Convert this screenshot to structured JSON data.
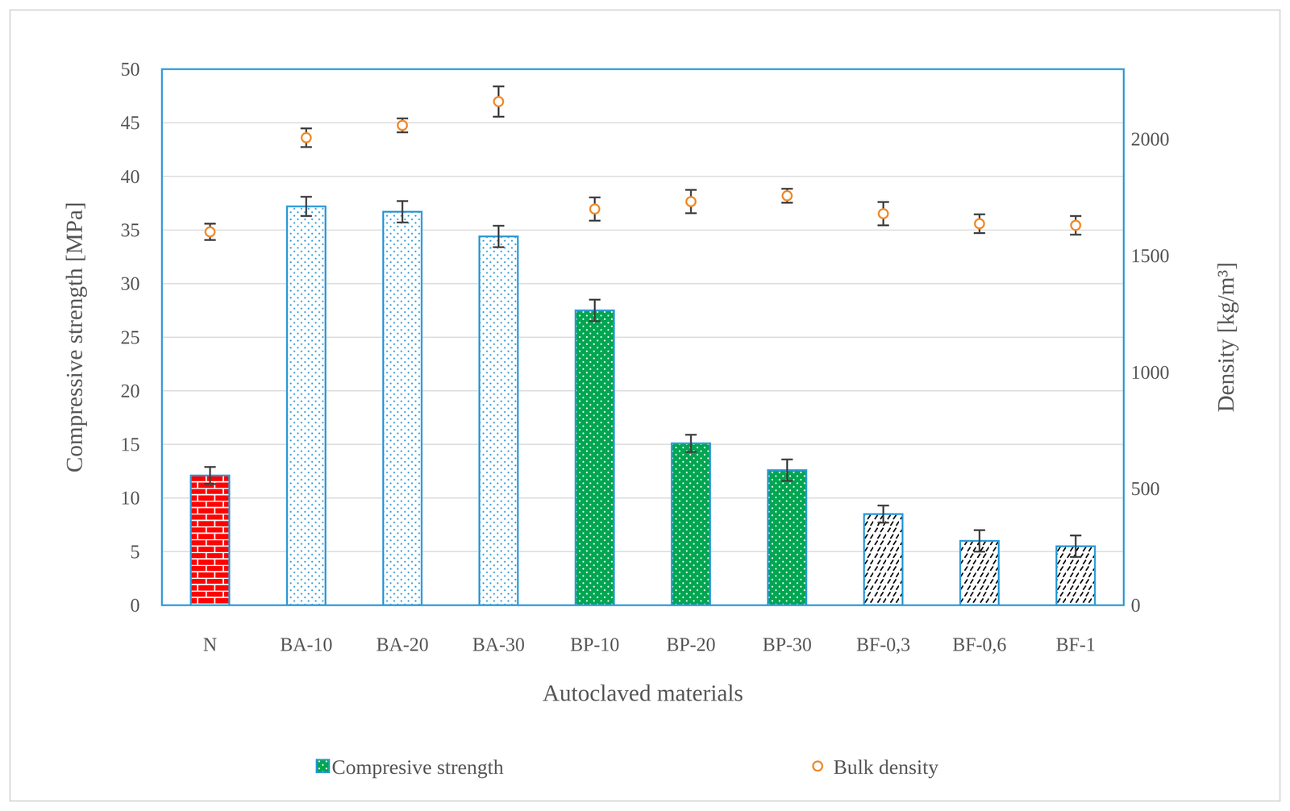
{
  "chart_data": {
    "type": "bar",
    "x_label": "Autoclaved materials",
    "y_label": "Compressive strength [MPa]",
    "y2_label": "Density [kg/m³]",
    "categories": [
      "N",
      "BA-10",
      "BA-20",
      "BA-30",
      "BP-10",
      "BP-20",
      "BP-30",
      "BF-0,3",
      "BF-0,6",
      "BF-1"
    ],
    "series": [
      {
        "name": "Compresive strength",
        "type": "bar",
        "colors": [
          "#ff0000",
          "#4aa8e0",
          "#4aa8e0",
          "#4aa8e0",
          "#00a651",
          "#00a651",
          "#00a651",
          "#000000",
          "#000000",
          "#000000"
        ],
        "values": [
          12.1,
          37.2,
          36.7,
          34.4,
          27.5,
          15.1,
          12.6,
          8.5,
          6.0,
          5.5
        ],
        "errors": [
          0.8,
          0.9,
          1.0,
          1.0,
          1.0,
          0.8,
          1.0,
          0.8,
          1.0,
          1.0
        ]
      },
      {
        "name": "Bulk density",
        "type": "scatter",
        "axis": "y2",
        "color": "#f08a2c",
        "marker": "circle",
        "values": [
          1602,
          2006,
          2059,
          2161,
          1700,
          1732,
          1757,
          1680,
          1637,
          1630
        ],
        "errors": [
          35,
          40,
          30,
          65,
          50,
          50,
          30,
          50,
          40,
          40
        ]
      }
    ],
    "ylim": [
      0,
      50
    ],
    "yticks": [
      0,
      5,
      10,
      15,
      20,
      25,
      30,
      35,
      40,
      45,
      50
    ],
    "y2lim": [
      0,
      2300
    ],
    "y2ticks": [
      0,
      500,
      1000,
      1500,
      2000
    ],
    "grid": true,
    "legend": "bottom"
  }
}
